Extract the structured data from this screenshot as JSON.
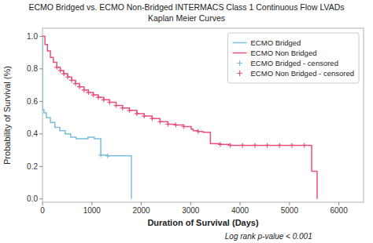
{
  "chart_data": {
    "type": "step",
    "title": "ECMO Bridged vs. ECMO Non-Bridged INTERMACS Class 1 Continuous Flow LVADs",
    "subtitle": "Kaplan Meier Curves",
    "x_label": "Duration of Survival (Days)",
    "y_label": "Probability of Survival (%)",
    "annotations": [
      "Log rank p-value < 0.001"
    ],
    "xlim": [
      0,
      6500
    ],
    "ylim": [
      -0.02,
      1.05
    ],
    "xticks": [
      0,
      1000,
      2000,
      3000,
      4000,
      5000,
      6000
    ],
    "yticks": [
      {
        "value": 0.0,
        "label": "0.0"
      },
      0.2,
      0.4,
      0.6,
      0.8,
      {
        "value": 1.0,
        "label": "1.0"
      }
    ],
    "grid": false,
    "legend": "upper right",
    "series": [
      {
        "name": "ECMO Bridged",
        "type": "step",
        "color": "#7bbfdb",
        "x": [
          0,
          0,
          30,
          80,
          160,
          250,
          350,
          460,
          570,
          680,
          800,
          920,
          1050,
          1180,
          1320,
          1470,
          1620,
          1800,
          1800
        ],
        "values": [
          1.0,
          0.55,
          0.53,
          0.5,
          0.47,
          0.44,
          0.42,
          0.4,
          0.38,
          0.37,
          0.37,
          0.38,
          0.37,
          0.27,
          0.265,
          0.265,
          0.265,
          0.265,
          0.0
        ]
      },
      {
        "name": "ECMO Non Bridged",
        "type": "step",
        "color": "#e8517a",
        "x": [
          0,
          50,
          100,
          160,
          220,
          290,
          360,
          430,
          510,
          590,
          670,
          750,
          840,
          930,
          1030,
          1130,
          1240,
          1360,
          1490,
          1620,
          1760,
          1910,
          2060,
          2220,
          2380,
          2540,
          2700,
          2860,
          3010,
          3050,
          3150,
          3250,
          3400,
          3600,
          3800,
          4050,
          4300,
          4550,
          4800,
          5050,
          5300,
          5450,
          5560,
          5560
        ],
        "values": [
          1.0,
          0.95,
          0.91,
          0.87,
          0.84,
          0.81,
          0.79,
          0.77,
          0.75,
          0.73,
          0.71,
          0.69,
          0.67,
          0.655,
          0.64,
          0.625,
          0.61,
          0.595,
          0.575,
          0.56,
          0.545,
          0.525,
          0.51,
          0.495,
          0.475,
          0.46,
          0.455,
          0.445,
          0.43,
          0.42,
          0.415,
          0.41,
          0.34,
          0.335,
          0.33,
          0.33,
          0.33,
          0.33,
          0.33,
          0.33,
          0.33,
          0.17,
          0.17,
          0.0
        ]
      },
      {
        "name": "ECMO Bridged - censored",
        "type": "scatter",
        "marker": "plus",
        "color": "#7bbfdb",
        "x": [
          1180,
          1320
        ],
        "values": [
          0.27,
          0.265
        ]
      },
      {
        "name": "ECMO Non Bridged - censored",
        "type": "scatter",
        "marker": "plus",
        "color": "#e8517a",
        "x": [
          290,
          360,
          430,
          510,
          590,
          670,
          750,
          840,
          930,
          1030,
          1130,
          1240,
          1360,
          1490,
          1620,
          1760,
          1910,
          2060,
          2220,
          2380,
          2540,
          2700,
          2860,
          3150,
          3600,
          3800,
          4050,
          4300,
          4550,
          4800,
          5050,
          5300
        ],
        "values": [
          0.81,
          0.79,
          0.77,
          0.75,
          0.73,
          0.71,
          0.69,
          0.67,
          0.655,
          0.64,
          0.625,
          0.61,
          0.595,
          0.575,
          0.56,
          0.545,
          0.525,
          0.51,
          0.495,
          0.475,
          0.46,
          0.455,
          0.445,
          0.415,
          0.335,
          0.33,
          0.33,
          0.33,
          0.33,
          0.33,
          0.33,
          0.33
        ]
      }
    ]
  }
}
